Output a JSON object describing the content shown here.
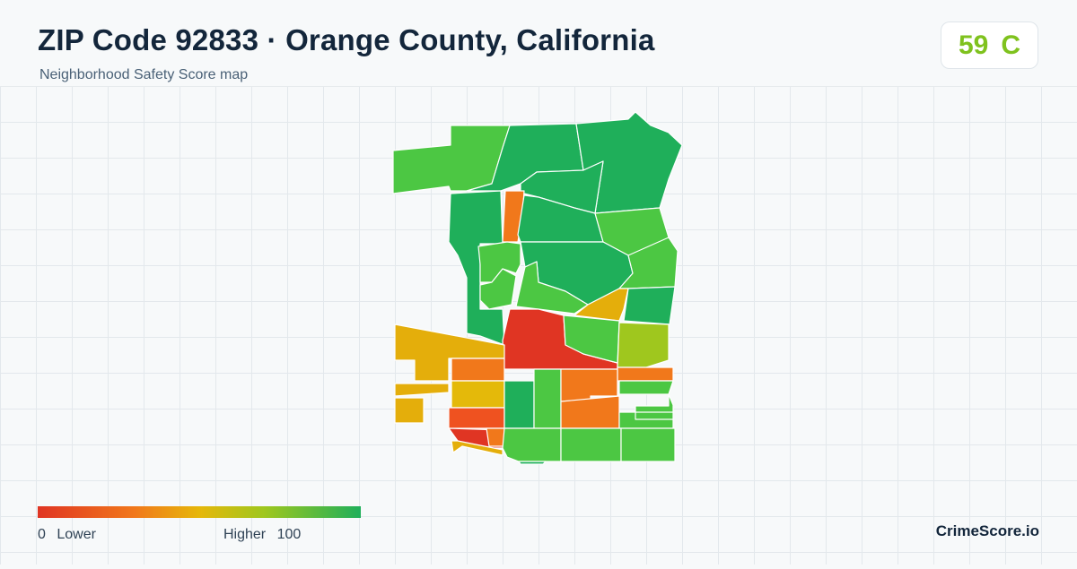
{
  "header": {
    "title": "ZIP Code 92833 · Orange County, California",
    "subtitle": "Neighborhood Safety Score map"
  },
  "score": {
    "value": "59",
    "grade": "C",
    "color": "#7fc21e"
  },
  "legend": {
    "low_value": "0",
    "low_label": "Lower",
    "high_label": "Higher",
    "high_value": "100",
    "colors": [
      "#e03523",
      "#f1781b",
      "#e6b70a",
      "#9fc71e",
      "#1faf5a"
    ]
  },
  "brand": "CrimeScore.io",
  "map": {
    "fill_colors": {
      "deep_green": "#1faf5a",
      "green": "#4cc743",
      "yellow_green": "#9fc71e",
      "amber": "#e4ae0b",
      "orange": "#f1781b",
      "red_orange": "#ef5220",
      "red": "#e03523"
    }
  }
}
